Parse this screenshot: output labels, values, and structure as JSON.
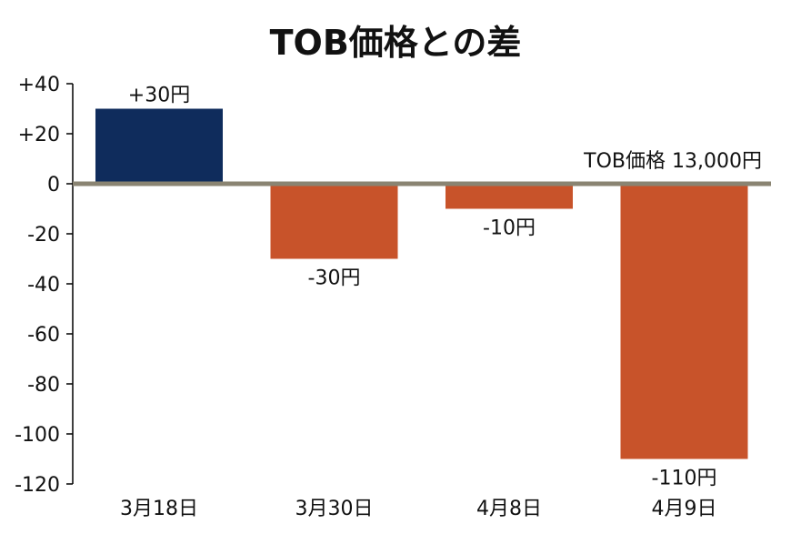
{
  "chart_data": {
    "type": "bar",
    "title": "TOB価格との差",
    "xlabel": "",
    "ylabel": "",
    "categories": [
      "3月18日",
      "3月30日",
      "4月8日",
      "4月9日"
    ],
    "values": [
      30,
      -30,
      -10,
      -110
    ],
    "data_labels": [
      "+30円",
      "-30円",
      "-10円",
      "-110円"
    ],
    "ylim": [
      -120,
      40
    ],
    "y_ticks": [
      40,
      20,
      0,
      -20,
      -40,
      -60,
      -80,
      -100,
      -120
    ],
    "y_tick_labels": [
      "+40",
      "+20",
      "0",
      "-20",
      "-40",
      "-60",
      "-80",
      "-100",
      "-120"
    ],
    "reference_label": "TOB価格 13,000円",
    "grid": false,
    "colors": {
      "positive": "#0f2c5c",
      "negative": "#c8532a",
      "zero_line": "#8a8472",
      "axis": "#000000",
      "text": "#111111"
    }
  }
}
